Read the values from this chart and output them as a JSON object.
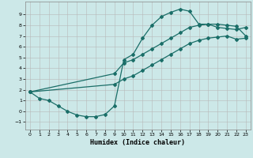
{
  "xlabel": "Humidex (Indice chaleur)",
  "bg_color": "#cce8e8",
  "grid_color": "#b8b8b8",
  "line_color": "#1a6e68",
  "xlim": [
    -0.5,
    23.5
  ],
  "ylim": [
    -1.7,
    10.2
  ],
  "xticks": [
    0,
    1,
    2,
    3,
    4,
    5,
    6,
    7,
    8,
    9,
    10,
    11,
    12,
    13,
    14,
    15,
    16,
    17,
    18,
    19,
    20,
    21,
    22,
    23
  ],
  "yticks": [
    -1,
    0,
    1,
    2,
    3,
    4,
    5,
    6,
    7,
    8,
    9
  ],
  "line1_x": [
    0,
    1,
    2,
    3,
    4,
    5,
    6,
    7,
    8,
    9,
    10,
    11,
    12,
    13,
    14,
    15,
    16,
    17,
    18,
    19,
    20,
    21,
    22,
    23
  ],
  "line1_y": [
    1.8,
    1.2,
    1.0,
    0.5,
    0.0,
    -0.35,
    -0.5,
    -0.5,
    -0.3,
    0.5,
    4.8,
    5.3,
    6.8,
    8.0,
    8.8,
    9.2,
    9.5,
    9.3,
    8.1,
    8.1,
    7.8,
    7.7,
    7.6,
    7.8
  ],
  "line2_x": [
    0,
    9,
    10,
    11,
    12,
    13,
    14,
    15,
    16,
    17,
    18,
    19,
    20,
    21,
    22,
    23
  ],
  "line2_y": [
    1.8,
    3.5,
    4.5,
    4.8,
    5.3,
    5.8,
    6.3,
    6.8,
    7.3,
    7.8,
    8.0,
    8.1,
    8.1,
    8.0,
    7.9,
    7.0
  ],
  "line3_x": [
    0,
    9,
    10,
    11,
    12,
    13,
    14,
    15,
    16,
    17,
    18,
    19,
    20,
    21,
    22,
    23
  ],
  "line3_y": [
    1.8,
    2.5,
    3.0,
    3.3,
    3.8,
    4.3,
    4.8,
    5.3,
    5.8,
    6.3,
    6.6,
    6.8,
    6.9,
    7.0,
    6.7,
    6.8
  ]
}
